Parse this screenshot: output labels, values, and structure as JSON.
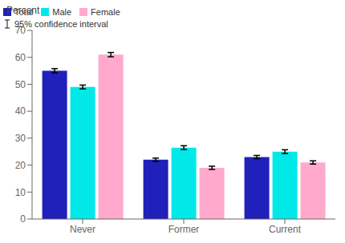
{
  "chart_data": {
    "type": "bar",
    "ylabel": "Percent",
    "categories": [
      "Never",
      "Former",
      "Current"
    ],
    "series": [
      {
        "name": "Total",
        "color": "#2020bb",
        "values": [
          55.0,
          22.0,
          23.0
        ],
        "errors": [
          0.8,
          0.6,
          0.6
        ]
      },
      {
        "name": "Male",
        "color": "#00e8e8",
        "values": [
          49.0,
          26.5,
          25.0
        ],
        "errors": [
          0.7,
          0.7,
          0.7
        ]
      },
      {
        "name": "Female",
        "color": "#ffaacc",
        "values": [
          61.0,
          19.0,
          21.0
        ],
        "errors": [
          0.8,
          0.6,
          0.6
        ]
      }
    ],
    "error_bar_label": "95% confidence interval",
    "ylim": [
      0,
      70
    ],
    "yticks": [
      0,
      10,
      20,
      30,
      40,
      50,
      60,
      70
    ],
    "grid": false,
    "legend": "upper right"
  }
}
